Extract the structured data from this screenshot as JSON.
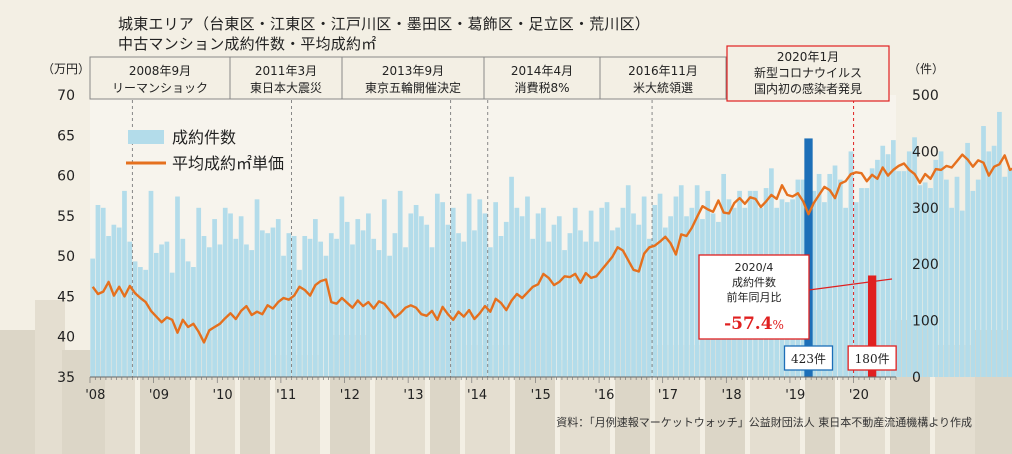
{
  "title_line1": "城東エリア（台東区・江東区・江戸川区・墨田区・葛飾区・足立区・荒川区）",
  "title_line2": "中古マンション成約件数・平均成約㎡",
  "source_note": "資料：「月例速報マーケットウォッチ」公益財団法人 東日本不動産流通機構より作成",
  "colors": {
    "bar": "#b3dcea",
    "line": "#e5701e",
    "highlight_bar": "#1d6fb8",
    "alert": "#e02020",
    "background": "#f3efe4"
  },
  "chart_data": {
    "type": "bar",
    "left_axis_unit": "（万円）",
    "right_axis_unit": "（件）",
    "left_axis_ticks": [
      "70",
      "65",
      "60",
      "55",
      "50",
      "45",
      "40",
      "35"
    ],
    "right_axis_ticks": [
      "500",
      "400",
      "300",
      "200",
      "100",
      "0"
    ],
    "ylim_left": [
      35,
      70
    ],
    "ylim_right": [
      0,
      500
    ],
    "x_labels": [
      "'08",
      "'09",
      "'10",
      "'11",
      "'12",
      "'13",
      "'14",
      "'15",
      "'16",
      "'17",
      "'18",
      "'19",
      "'20"
    ],
    "legend": {
      "bar": "成約件数",
      "line": "平均成約㎡単価",
      "placement": "top-left"
    },
    "start_year": 2008,
    "start_month": 1,
    "bar_values": [
      210,
      305,
      300,
      250,
      270,
      265,
      330,
      240,
      205,
      195,
      190,
      330,
      220,
      235,
      240,
      185,
      320,
      245,
      205,
      195,
      300,
      250,
      230,
      280,
      235,
      300,
      290,
      245,
      285,
      235,
      225,
      315,
      260,
      255,
      265,
      280,
      215,
      255,
      250,
      190,
      250,
      245,
      280,
      240,
      215,
      255,
      245,
      320,
      275,
      235,
      280,
      260,
      290,
      245,
      225,
      315,
      215,
      255,
      330,
      230,
      290,
      305,
      285,
      270,
      230,
      325,
      310,
      270,
      300,
      255,
      240,
      325,
      260,
      315,
      290,
      230,
      310,
      250,
      275,
      355,
      300,
      285,
      320,
      245,
      290,
      300,
      240,
      270,
      285,
      225,
      255,
      300,
      260,
      240,
      295,
      240,
      300,
      310,
      260,
      265,
      300,
      340,
      290,
      270,
      320,
      245,
      305,
      325,
      265,
      285,
      320,
      340,
      285,
      300,
      340,
      280,
      330,
      290,
      275,
      360,
      315,
      300,
      330,
      300,
      330,
      330,
      300,
      335,
      370,
      300,
      315,
      310,
      315,
      350,
      350,
      325,
      330,
      360,
      310,
      360,
      375,
      350,
      300,
      400,
      310,
      335,
      335,
      370,
      385,
      410,
      395,
      420,
      365,
      365,
      400,
      425,
      340,
      345,
      335,
      385,
      400,
      350,
      300,
      355,
      295,
      415,
      330,
      350,
      445,
      400,
      410,
      470,
      355,
      370,
      380,
      330,
      375,
      320,
      330,
      345,
      360,
      340,
      425,
      450,
      175,
      400,
      445,
      445
    ],
    "line_values": [
      46.2,
      45.3,
      45.6,
      46.8,
      45.1,
      46.2,
      45.0,
      46.3,
      45.4,
      44.8,
      44.3,
      43.2,
      42.5,
      41.8,
      42.4,
      42.1,
      40.5,
      42.1,
      41.2,
      41.6,
      40.6,
      39.3,
      40.8,
      41.2,
      41.6,
      42.3,
      42.9,
      42.2,
      43.2,
      43.8,
      42.7,
      43.1,
      42.8,
      43.9,
      43.5,
      44.3,
      44.8,
      44.6,
      45.1,
      46.2,
      45.8,
      45.1,
      46.4,
      46.9,
      47.1,
      44.3,
      44.1,
      44.8,
      44.2,
      43.6,
      44.5,
      43.8,
      44.3,
      43.5,
      44.4,
      44.1,
      43.3,
      42.4,
      42.9,
      43.6,
      43.9,
      43.6,
      42.8,
      42.6,
      43.2,
      42.1,
      43.7,
      42.8,
      42.1,
      43.1,
      42.5,
      43.3,
      42.2,
      42.9,
      43.8,
      43.1,
      44.7,
      44.2,
      43.3,
      44.5,
      45.3,
      44.8,
      45.5,
      46.2,
      46.5,
      47.8,
      47.3,
      46.4,
      46.8,
      47.5,
      47.4,
      47.8,
      46.7,
      47.9,
      47.3,
      47.5,
      48.3,
      49.1,
      49.9,
      51.1,
      50.7,
      49.5,
      48.3,
      48.1,
      50.3,
      51.1,
      51.3,
      51.8,
      52.4,
      51.6,
      50.2,
      52.7,
      52.5,
      53.5,
      54.9,
      56.2,
      55.8,
      55.5,
      56.9,
      55.4,
      55.3,
      56.6,
      57.2,
      56.5,
      57.3,
      57.1,
      56.1,
      56.8,
      57.6,
      57.1,
      58.8,
      57.6,
      57.4,
      57.8,
      56.8,
      55.2,
      56.6,
      57.6,
      58.6,
      58.2,
      57.2,
      59.0,
      59.3,
      60.2,
      60.4,
      60.3,
      59.3,
      60.1,
      59.6,
      61.0,
      60.0,
      60.7,
      61.2,
      61.5,
      60.7,
      60.2,
      59.1,
      60.2,
      59.6,
      60.8,
      60.7,
      61.2,
      61.0,
      61.8,
      62.6,
      62.0,
      61.1,
      61.9,
      61.6,
      60.0,
      61.1,
      61.4,
      62.5,
      60.7,
      61.0,
      61.4,
      61.7,
      61.9,
      60.8,
      62.3,
      63.5,
      65.2,
      63.5,
      63.0,
      62.7
    ],
    "highlight_bars": [
      {
        "label": "423件",
        "month": "2019-04",
        "value": 423
      },
      {
        "label": "180件",
        "month": "2020-04",
        "value": 180
      }
    ],
    "events": [
      {
        "label": "2008年9月 リーマンショック",
        "line1": "2008年9月",
        "line2": "リーマンショック",
        "month": "2008-09"
      },
      {
        "label": "2011年3月 東日本大震災",
        "line1": "2011年3月",
        "line2": "東日本大震災",
        "month": "2011-03"
      },
      {
        "label": "2013年9月 東京五輪開催決定",
        "line1": "2013年9月",
        "line2": "東京五輪開催決定",
        "month": "2013-09"
      },
      {
        "label": "2014年4月 消費税8%",
        "line1": "2014年4月",
        "line2": "消費税8%",
        "month": "2014-04"
      },
      {
        "label": "2016年11月 米大統領選",
        "line1": "2016年11月",
        "line2": "米大統領選",
        "month": "2016-11"
      },
      {
        "label": "2020年1月 新型コロナウイルス国内初の感染者発見",
        "line1": "2020年1月",
        "line2": "新型コロナウイルス",
        "line3": "国内初の感染者発見",
        "month": "2020-01"
      }
    ],
    "callout": {
      "line1": "2020/4",
      "line2": "成約件数",
      "line3": "前年同月比",
      "value": "-57.4",
      "unit": "%"
    }
  }
}
